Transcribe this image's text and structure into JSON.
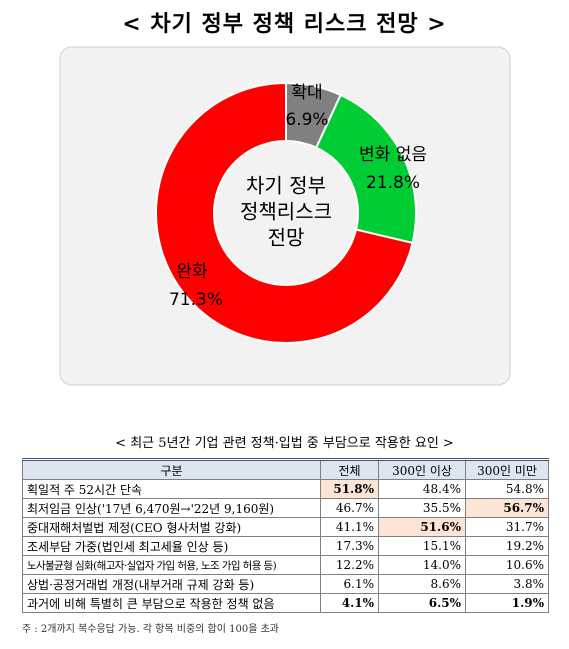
{
  "title": "< 차기 정부 정책 리스크 전망 >",
  "chart_data": {
    "type": "pie",
    "center_label": [
      "차기 정부",
      "정책리스크",
      "전망"
    ],
    "categories": [
      "확대",
      "변화 없음",
      "완화"
    ],
    "values": [
      6.9,
      21.8,
      71.3
    ],
    "value_labels": [
      "6.9%",
      "21.8%",
      "71.3%"
    ],
    "colors": [
      "#808080",
      "#00cc33",
      "#ff0000"
    ]
  },
  "table": {
    "title": "< 최근 5년간 기업 관련 정책·입법 중 부담으로 작용한 요인 >",
    "header": [
      "구분",
      "전체",
      "300인 이상",
      "300인 미만"
    ],
    "rows": [
      [
        "획일적 주 52시간 단속",
        "51.8%",
        "48.4%",
        "54.8%"
      ],
      [
        "최저임금 인상('17년 6,470원→'22년 9,160원)",
        "46.7%",
        "35.5%",
        "56.7%"
      ],
      [
        "중대재해처벌법 제정(CEO 형사처벌 강화)",
        "41.1%",
        "51.6%",
        "31.7%"
      ],
      [
        "조세부담 가중(법인세 최고세율 인상 등)",
        "17.3%",
        "15.1%",
        "19.2%"
      ],
      [
        "노사불균형 심화(해고자·실업자 가입 허용, 노조 가입 허용 등)",
        "12.2%",
        "14.0%",
        "10.6%"
      ],
      [
        "상법·공정거래법 개정(내부거래 규제 강화 등)",
        "6.1%",
        "8.6%",
        "3.8%"
      ],
      [
        "과거에 비해 특별히 큰 부담으로 작용한 정책 없음",
        "4.1%",
        "6.5%",
        "1.9%"
      ]
    ],
    "note": "주 : 2개까지 복수응답 가능. 각 항목 비중의 합이 100을 초과"
  }
}
